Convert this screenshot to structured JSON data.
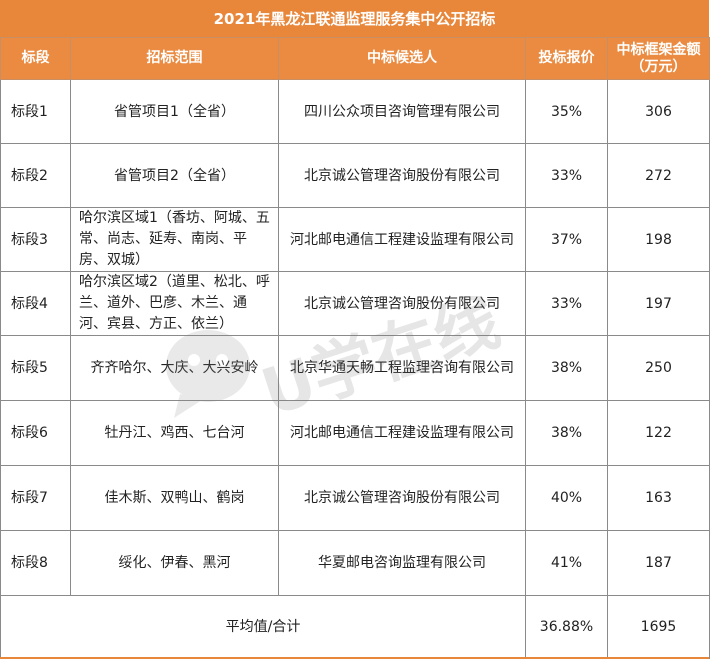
{
  "title": "2021年黑龙江联通监理服务集中公开招标",
  "headers": {
    "segment": "标段",
    "scope": "招标范围",
    "candidate": "中标候选人",
    "bid": "投标报价",
    "amount_line1": "中标框架金额",
    "amount_line2": "（万元）"
  },
  "rows": [
    {
      "segment": "标段1",
      "scope": "省管项目1（全省）",
      "candidate": "四川公众项目咨询管理有限公司",
      "bid": "35%",
      "amount": "306"
    },
    {
      "segment": "标段2",
      "scope": "省管项目2（全省）",
      "candidate": "北京诚公管理咨询股份有限公司",
      "bid": "33%",
      "amount": "272"
    },
    {
      "segment": "标段3",
      "scope": "哈尔滨区域1（香坊、阿城、五常、尚志、延寿、南岗、平房、双城）",
      "candidate": "河北邮电通信工程建设监理有限公司",
      "bid": "37%",
      "amount": "198"
    },
    {
      "segment": "标段4",
      "scope": "哈尔滨区域2（道里、松北、呼兰、道外、巴彦、木兰、通河、宾县、方正、依兰）",
      "candidate": "北京诚公管理咨询股份有限公司",
      "bid": "33%",
      "amount": "197"
    },
    {
      "segment": "标段5",
      "scope": "齐齐哈尔、大庆、大兴安岭",
      "candidate": "北京华通天畅工程监理咨询有限公司",
      "bid": "38%",
      "amount": "250"
    },
    {
      "segment": "标段6",
      "scope": "牡丹江、鸡西、七台河",
      "candidate": "河北邮电通信工程建设监理有限公司",
      "bid": "38%",
      "amount": "122"
    },
    {
      "segment": "标段7",
      "scope": "佳木斯、双鸭山、鹤岗",
      "candidate": "北京诚公管理咨询股份有限公司",
      "bid": "40%",
      "amount": "163"
    },
    {
      "segment": "标段8",
      "scope": "绥化、伊春、黑河",
      "candidate": "华夏邮电咨询监理有限公司",
      "bid": "41%",
      "amount": "187"
    }
  ],
  "total": {
    "label": "平均值/合计",
    "bid": "36.88%",
    "amount": "1695"
  },
  "watermark": {
    "text": "U学在线",
    "icon": "chat-bubble-icon"
  },
  "colors": {
    "header": "#ea8b41",
    "border": "#8a8a8a"
  }
}
